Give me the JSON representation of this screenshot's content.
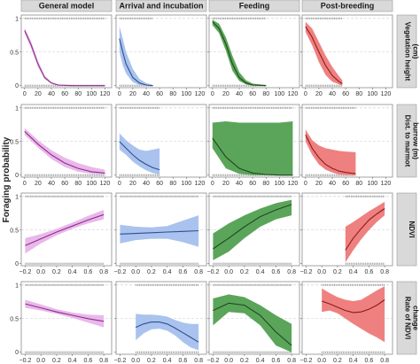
{
  "chart_data": {
    "type": "line",
    "y_axis_label": "Foraging probability",
    "columns": [
      "General model",
      "Arrival and incubation",
      "Feeding",
      "Post-breeding"
    ],
    "rows": [
      {
        "label_lines": [
          "Vegetation height",
          "(cm)"
        ],
        "xlim": [
          -5,
          130
        ],
        "xticks": [
          0,
          20,
          40,
          60,
          80,
          100,
          120
        ]
      },
      {
        "label_lines": [
          "Dist. to marmot",
          "burrow (m)"
        ],
        "xlim": [
          -5,
          130
        ],
        "xticks": [
          0,
          20,
          40,
          60,
          80,
          100,
          120
        ]
      },
      {
        "label_lines": [
          "NDVI"
        ],
        "xlim": [
          -0.25,
          0.9
        ],
        "xticks": [
          -0.2,
          0,
          0.2,
          0.4,
          0.6,
          0.8
        ]
      },
      {
        "label_lines": [
          "Rate of NDVI",
          "change"
        ],
        "xlim": [
          -0.25,
          0.9
        ],
        "xticks": [
          -0.2,
          0,
          0.2,
          0.4,
          0.6,
          0.8
        ]
      }
    ],
    "ylim": [
      -0.03,
      1.05
    ],
    "yticks": [
      0,
      0.5,
      1
    ],
    "colors": {
      "General model": {
        "line": "#8e2d8e",
        "fill": "#e9b8ea"
      },
      "Arrival and incubation": {
        "line": "#2f4f8f",
        "fill": "#a9c3ee"
      },
      "Feeding": {
        "line": "#1f4a1f",
        "fill": "#5aa55a"
      },
      "Post-breeding": {
        "line": "#8a1c1c",
        "fill": "#ef8080"
      }
    },
    "panels": [
      {
        "row": 0,
        "col": 0,
        "x": [
          0,
          10,
          20,
          30,
          40,
          50,
          70,
          100,
          120
        ],
        "y": [
          0.82,
          0.6,
          0.32,
          0.12,
          0.04,
          0.01,
          0.0,
          0.0,
          0.0
        ],
        "lo": [
          0.78,
          0.55,
          0.28,
          0.1,
          0.03,
          0.005,
          0.0,
          0.0,
          0.0
        ],
        "hi": [
          0.86,
          0.65,
          0.37,
          0.15,
          0.05,
          0.02,
          0.005,
          0.0,
          0.0
        ]
      },
      {
        "row": 0,
        "col": 1,
        "x": [
          0,
          5,
          10,
          20,
          30,
          40,
          50
        ],
        "y": [
          0.7,
          0.5,
          0.32,
          0.12,
          0.04,
          0.01,
          0.0
        ],
        "lo": [
          0.5,
          0.3,
          0.18,
          0.05,
          0.01,
          0.0,
          0.0
        ],
        "hi": [
          0.88,
          0.7,
          0.5,
          0.25,
          0.1,
          0.04,
          0.01
        ]
      },
      {
        "row": 0,
        "col": 2,
        "x": [
          0,
          10,
          20,
          30,
          40,
          50,
          60,
          80
        ],
        "y": [
          0.95,
          0.85,
          0.62,
          0.32,
          0.12,
          0.04,
          0.01,
          0.0
        ],
        "lo": [
          0.9,
          0.78,
          0.52,
          0.22,
          0.07,
          0.02,
          0.0,
          0.0
        ],
        "hi": [
          0.98,
          0.92,
          0.72,
          0.44,
          0.2,
          0.08,
          0.03,
          0.01
        ]
      },
      {
        "row": 0,
        "col": 3,
        "x": [
          0,
          10,
          20,
          30,
          40,
          50,
          55
        ],
        "y": [
          0.88,
          0.72,
          0.5,
          0.3,
          0.15,
          0.06,
          0.03
        ],
        "lo": [
          0.8,
          0.6,
          0.35,
          0.16,
          0.06,
          0.02,
          0.0
        ],
        "hi": [
          0.95,
          0.85,
          0.65,
          0.45,
          0.28,
          0.14,
          0.08
        ]
      },
      {
        "row": 1,
        "col": 0,
        "x": [
          0,
          20,
          40,
          60,
          80,
          100,
          120
        ],
        "y": [
          0.65,
          0.46,
          0.3,
          0.18,
          0.1,
          0.05,
          0.03
        ],
        "lo": [
          0.6,
          0.41,
          0.24,
          0.12,
          0.05,
          0.02,
          0.01
        ],
        "hi": [
          0.7,
          0.52,
          0.37,
          0.26,
          0.18,
          0.12,
          0.08
        ]
      },
      {
        "row": 1,
        "col": 1,
        "x": [
          0,
          10,
          20,
          30,
          40,
          50,
          60
        ],
        "y": [
          0.5,
          0.4,
          0.3,
          0.22,
          0.16,
          0.11,
          0.08
        ],
        "lo": [
          0.38,
          0.3,
          0.2,
          0.13,
          0.07,
          0.03,
          0.01
        ],
        "hi": [
          0.62,
          0.52,
          0.44,
          0.38,
          0.36,
          0.38,
          0.4
        ]
      },
      {
        "row": 1,
        "col": 2,
        "x": [
          0,
          20,
          40,
          60,
          80,
          100,
          120
        ],
        "y": [
          0.55,
          0.27,
          0.1,
          0.03,
          0.01,
          0.0,
          0.0
        ],
        "lo": [
          0.4,
          0.1,
          0.02,
          0.0,
          0.0,
          0.0,
          0.0
        ],
        "hi": [
          0.78,
          0.8,
          0.78,
          0.78,
          0.78,
          0.78,
          0.8
        ]
      },
      {
        "row": 1,
        "col": 3,
        "x": [
          0,
          10,
          20,
          30,
          40,
          50,
          60,
          75
        ],
        "y": [
          0.6,
          0.4,
          0.26,
          0.16,
          0.1,
          0.06,
          0.04,
          0.02
        ],
        "lo": [
          0.5,
          0.3,
          0.16,
          0.08,
          0.04,
          0.01,
          0.0,
          0.0
        ],
        "hi": [
          0.68,
          0.52,
          0.44,
          0.4,
          0.38,
          0.36,
          0.35,
          0.34
        ]
      },
      {
        "row": 2,
        "col": 0,
        "x": [
          -0.2,
          0.0,
          0.2,
          0.4,
          0.6,
          0.8
        ],
        "y": [
          0.27,
          0.37,
          0.47,
          0.56,
          0.65,
          0.73
        ],
        "lo": [
          0.15,
          0.3,
          0.42,
          0.52,
          0.6,
          0.66
        ],
        "hi": [
          0.38,
          0.44,
          0.52,
          0.61,
          0.71,
          0.8
        ]
      },
      {
        "row": 2,
        "col": 1,
        "x": [
          -0.2,
          0.0,
          0.2,
          0.4,
          0.6,
          0.8
        ],
        "y": [
          0.44,
          0.45,
          0.46,
          0.47,
          0.48,
          0.49
        ],
        "lo": [
          0.3,
          0.35,
          0.37,
          0.37,
          0.32,
          0.25
        ],
        "hi": [
          0.58,
          0.55,
          0.54,
          0.56,
          0.64,
          0.72
        ]
      },
      {
        "row": 2,
        "col": 2,
        "x": [
          -0.2,
          0.0,
          0.2,
          0.4,
          0.6,
          0.8
        ],
        "y": [
          0.22,
          0.38,
          0.55,
          0.7,
          0.8,
          0.88
        ],
        "lo": [
          0.05,
          0.18,
          0.38,
          0.55,
          0.66,
          0.72
        ],
        "hi": [
          0.45,
          0.6,
          0.72,
          0.82,
          0.9,
          0.95
        ]
      },
      {
        "row": 2,
        "col": 3,
        "x": [
          0.3,
          0.4,
          0.5,
          0.6,
          0.7,
          0.8
        ],
        "y": [
          0.2,
          0.38,
          0.52,
          0.65,
          0.74,
          0.82
        ],
        "lo": [
          0.02,
          0.2,
          0.36,
          0.5,
          0.62,
          0.72
        ],
        "hi": [
          0.55,
          0.62,
          0.7,
          0.78,
          0.85,
          0.92
        ]
      },
      {
        "row": 3,
        "col": 0,
        "x": [
          -0.2,
          0.0,
          0.2,
          0.4,
          0.6,
          0.8
        ],
        "y": [
          0.72,
          0.66,
          0.6,
          0.55,
          0.5,
          0.46
        ],
        "lo": [
          0.66,
          0.62,
          0.57,
          0.51,
          0.44,
          0.37
        ],
        "hi": [
          0.78,
          0.71,
          0.64,
          0.59,
          0.56,
          0.55
        ]
      },
      {
        "row": 3,
        "col": 1,
        "x": [
          0.0,
          0.1,
          0.2,
          0.3,
          0.4,
          0.5,
          0.6,
          0.7,
          0.8
        ],
        "y": [
          0.37,
          0.42,
          0.45,
          0.45,
          0.42,
          0.36,
          0.29,
          0.22,
          0.15
        ],
        "lo": [
          0.18,
          0.28,
          0.34,
          0.35,
          0.32,
          0.25,
          0.15,
          0.07,
          0.03
        ],
        "hi": [
          0.57,
          0.56,
          0.56,
          0.55,
          0.53,
          0.48,
          0.44,
          0.42,
          0.42
        ]
      },
      {
        "row": 3,
        "col": 2,
        "x": [
          -0.2,
          0.0,
          0.2,
          0.4,
          0.6,
          0.8
        ],
        "y": [
          0.62,
          0.73,
          0.7,
          0.55,
          0.3,
          0.1
        ],
        "lo": [
          0.4,
          0.6,
          0.58,
          0.4,
          0.1,
          0.0
        ],
        "hi": [
          0.8,
          0.86,
          0.82,
          0.7,
          0.55,
          0.42
        ]
      },
      {
        "row": 3,
        "col": 3,
        "x": [
          0.0,
          0.1,
          0.2,
          0.3,
          0.4,
          0.5,
          0.6,
          0.7,
          0.8
        ],
        "y": [
          0.76,
          0.72,
          0.67,
          0.62,
          0.59,
          0.6,
          0.64,
          0.7,
          0.78
        ],
        "lo": [
          0.6,
          0.62,
          0.58,
          0.5,
          0.42,
          0.35,
          0.28,
          0.22,
          0.15
        ],
        "hi": [
          0.95,
          0.88,
          0.82,
          0.78,
          0.76,
          0.78,
          0.85,
          0.92,
          0.98
        ]
      }
    ]
  }
}
